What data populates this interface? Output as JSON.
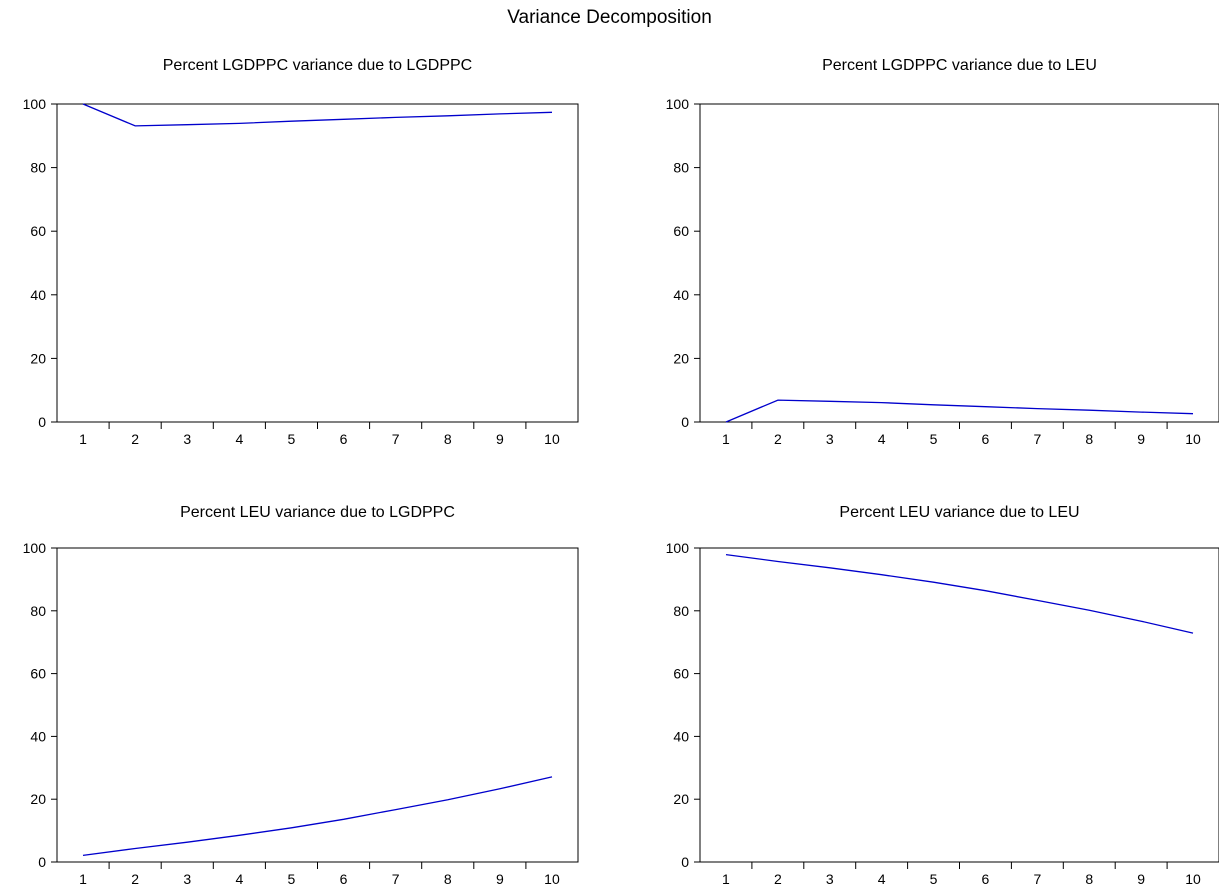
{
  "figure": {
    "title": "Variance Decomposition"
  },
  "colors": {
    "line": "#0000cc",
    "axis": "#000000",
    "background": "#ffffff"
  },
  "chart_data": [
    {
      "type": "line",
      "title": "Percent LGDPPC variance due to LGDPPC",
      "x": [
        1,
        2,
        3,
        4,
        5,
        6,
        7,
        8,
        9,
        10
      ],
      "x_tick_labels": [
        "1",
        "2",
        "3",
        "4",
        "5",
        "6",
        "7",
        "8",
        "9",
        "10"
      ],
      "series": [
        {
          "values": [
            100,
            93.1,
            93.5,
            93.9,
            94.6,
            95.2,
            95.8,
            96.3,
            96.9,
            97.4
          ]
        }
      ],
      "ylim": [
        0,
        100
      ],
      "y_ticks": [
        0,
        20,
        40,
        60,
        80,
        100
      ],
      "y_tick_labels": [
        "0",
        "20",
        "40",
        "60",
        "80",
        "100"
      ],
      "xlabel": "",
      "ylabel": "",
      "grid": false,
      "legend": "none"
    },
    {
      "type": "line",
      "title": "Percent LGDPPC variance due to LEU",
      "x": [
        1,
        2,
        3,
        4,
        5,
        6,
        7,
        8,
        9,
        10
      ],
      "x_tick_labels": [
        "1",
        "2",
        "3",
        "4",
        "5",
        "6",
        "7",
        "8",
        "9",
        "10"
      ],
      "series": [
        {
          "values": [
            0,
            6.9,
            6.5,
            6.1,
            5.4,
            4.8,
            4.2,
            3.7,
            3.1,
            2.6
          ]
        }
      ],
      "ylim": [
        0,
        100
      ],
      "y_ticks": [
        0,
        20,
        40,
        60,
        80,
        100
      ],
      "y_tick_labels": [
        "0",
        "20",
        "40",
        "60",
        "80",
        "100"
      ],
      "xlabel": "",
      "ylabel": "",
      "grid": false,
      "legend": "none"
    },
    {
      "type": "line",
      "title": "Percent LEU variance due to LGDPPC",
      "x": [
        1,
        2,
        3,
        4,
        5,
        6,
        7,
        8,
        9,
        10
      ],
      "x_tick_labels": [
        "1",
        "2",
        "3",
        "4",
        "5",
        "6",
        "7",
        "8",
        "9",
        "10"
      ],
      "series": [
        {
          "values": [
            2.1,
            4.3,
            6.3,
            8.5,
            10.9,
            13.6,
            16.7,
            19.8,
            23.3,
            27.1
          ]
        }
      ],
      "ylim": [
        0,
        100
      ],
      "y_ticks": [
        0,
        20,
        40,
        60,
        80,
        100
      ],
      "y_tick_labels": [
        "0",
        "20",
        "40",
        "60",
        "80",
        "100"
      ],
      "xlabel": "",
      "ylabel": "",
      "grid": false,
      "legend": "none"
    },
    {
      "type": "line",
      "title": "Percent LEU variance due to LEU",
      "x": [
        1,
        2,
        3,
        4,
        5,
        6,
        7,
        8,
        9,
        10
      ],
      "x_tick_labels": [
        "1",
        "2",
        "3",
        "4",
        "5",
        "6",
        "7",
        "8",
        "9",
        "10"
      ],
      "series": [
        {
          "values": [
            97.9,
            95.7,
            93.7,
            91.5,
            89.1,
            86.4,
            83.3,
            80.2,
            76.7,
            72.9
          ]
        }
      ],
      "ylim": [
        0,
        100
      ],
      "y_ticks": [
        0,
        20,
        40,
        60,
        80,
        100
      ],
      "y_tick_labels": [
        "0",
        "20",
        "40",
        "60",
        "80",
        "100"
      ],
      "xlabel": "",
      "ylabel": "",
      "grid": false,
      "legend": "none"
    }
  ]
}
